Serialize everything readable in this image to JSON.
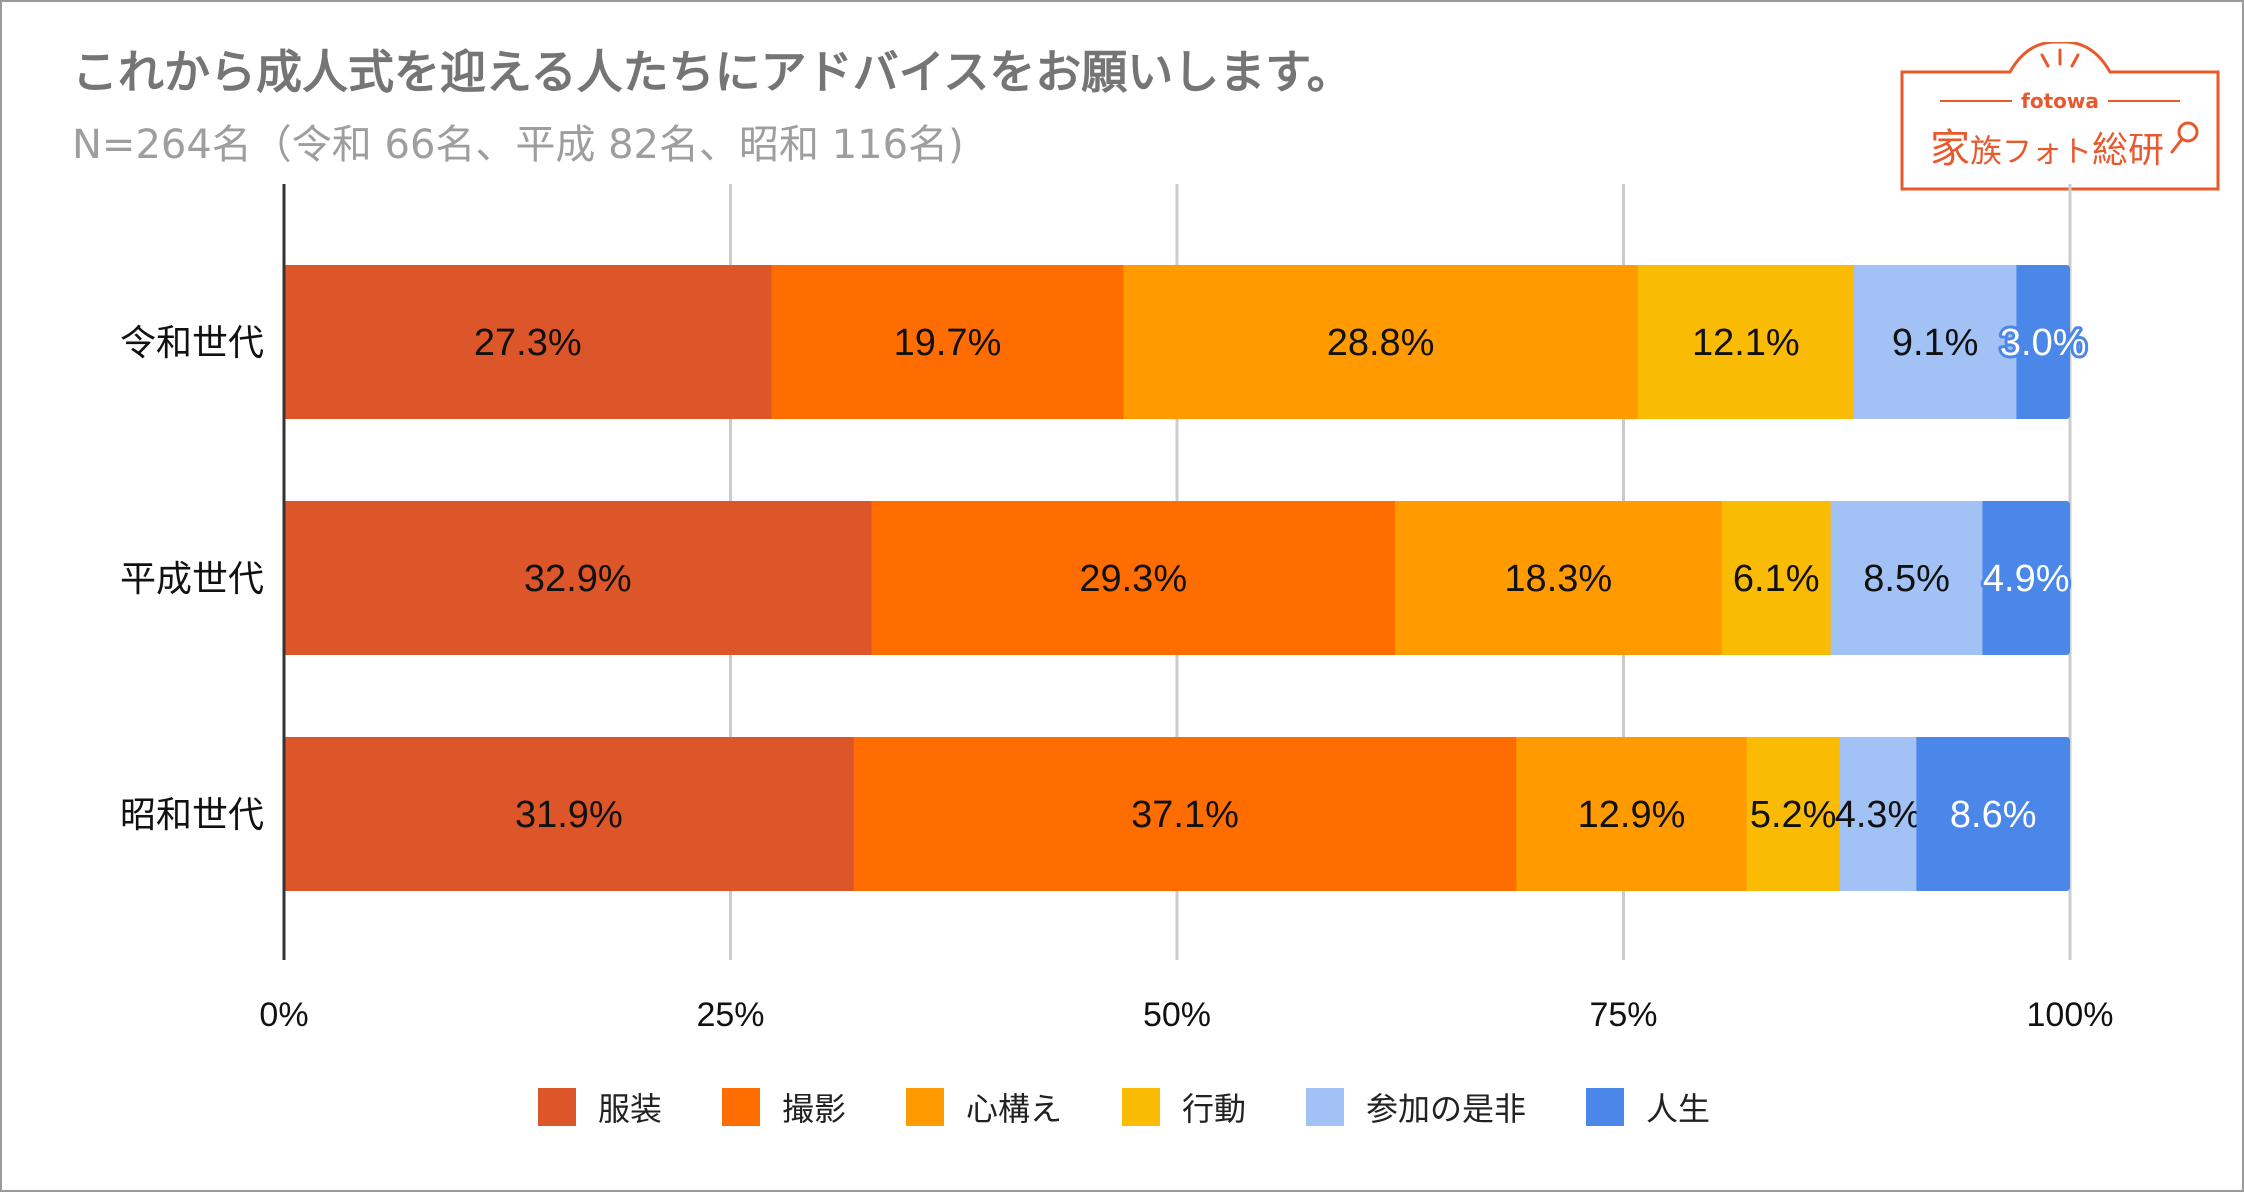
{
  "header": {
    "title": "これから成人式を迎える人たちにアドバイスをお願いします。",
    "subtitle": "N=264名（令和 66名、平成 82名、昭和 116名)"
  },
  "logo": {
    "brand": "fotowa",
    "name_main": "家",
    "name_small": "族",
    "name_kana": "フォト",
    "name_tail": "総研"
  },
  "colors": {
    "frame": "#9a9a9a",
    "title": "#757575",
    "subtitle": "#9e9e9e",
    "logo": "#e8592d"
  },
  "chart_data": {
    "type": "bar",
    "orientation": "horizontal",
    "stacked": "percent",
    "categories": [
      "令和世代",
      "平成世代",
      "昭和世代"
    ],
    "series": [
      {
        "name": "服装",
        "color": "#dd5629",
        "label_color": "#111111",
        "values": [
          27.3,
          32.9,
          31.9
        ],
        "labels": [
          "27.3%",
          "32.9%",
          "31.9%"
        ]
      },
      {
        "name": "撮影",
        "color": "#ff6d01",
        "label_color": "#111111",
        "values": [
          19.7,
          29.3,
          37.1
        ],
        "labels": [
          "19.7%",
          "29.3%",
          "37.1%"
        ]
      },
      {
        "name": "心構え",
        "color": "#ff9b00",
        "label_color": "#111111",
        "values": [
          28.8,
          18.3,
          12.9
        ],
        "labels": [
          "28.8%",
          "18.3%",
          "12.9%"
        ]
      },
      {
        "name": "行動",
        "color": "#fabb05",
        "label_color": "#111111",
        "values": [
          12.1,
          6.1,
          5.2
        ],
        "labels": [
          "12.1%",
          "6.1%",
          "5.2%"
        ]
      },
      {
        "name": "参加の是非",
        "color": "#a2c1f4",
        "label_color": "#111111",
        "values": [
          9.1,
          8.5,
          4.3
        ],
        "labels": [
          "9.1%",
          "8.5%",
          "4.3%"
        ]
      },
      {
        "name": "人生",
        "color": "#4a87e8",
        "label_color": "#ffffff",
        "values": [
          3.0,
          4.9,
          8.6
        ],
        "labels": [
          "3.0%",
          "4.9%",
          "8.6%"
        ]
      }
    ],
    "x_axis": {
      "range": [
        0,
        100
      ],
      "ticks": [
        0,
        25,
        50,
        75,
        100
      ],
      "tick_labels": [
        "0%",
        "25%",
        "50%",
        "75%",
        "100%"
      ],
      "grid": true
    },
    "legend": {
      "position": "bottom"
    }
  }
}
